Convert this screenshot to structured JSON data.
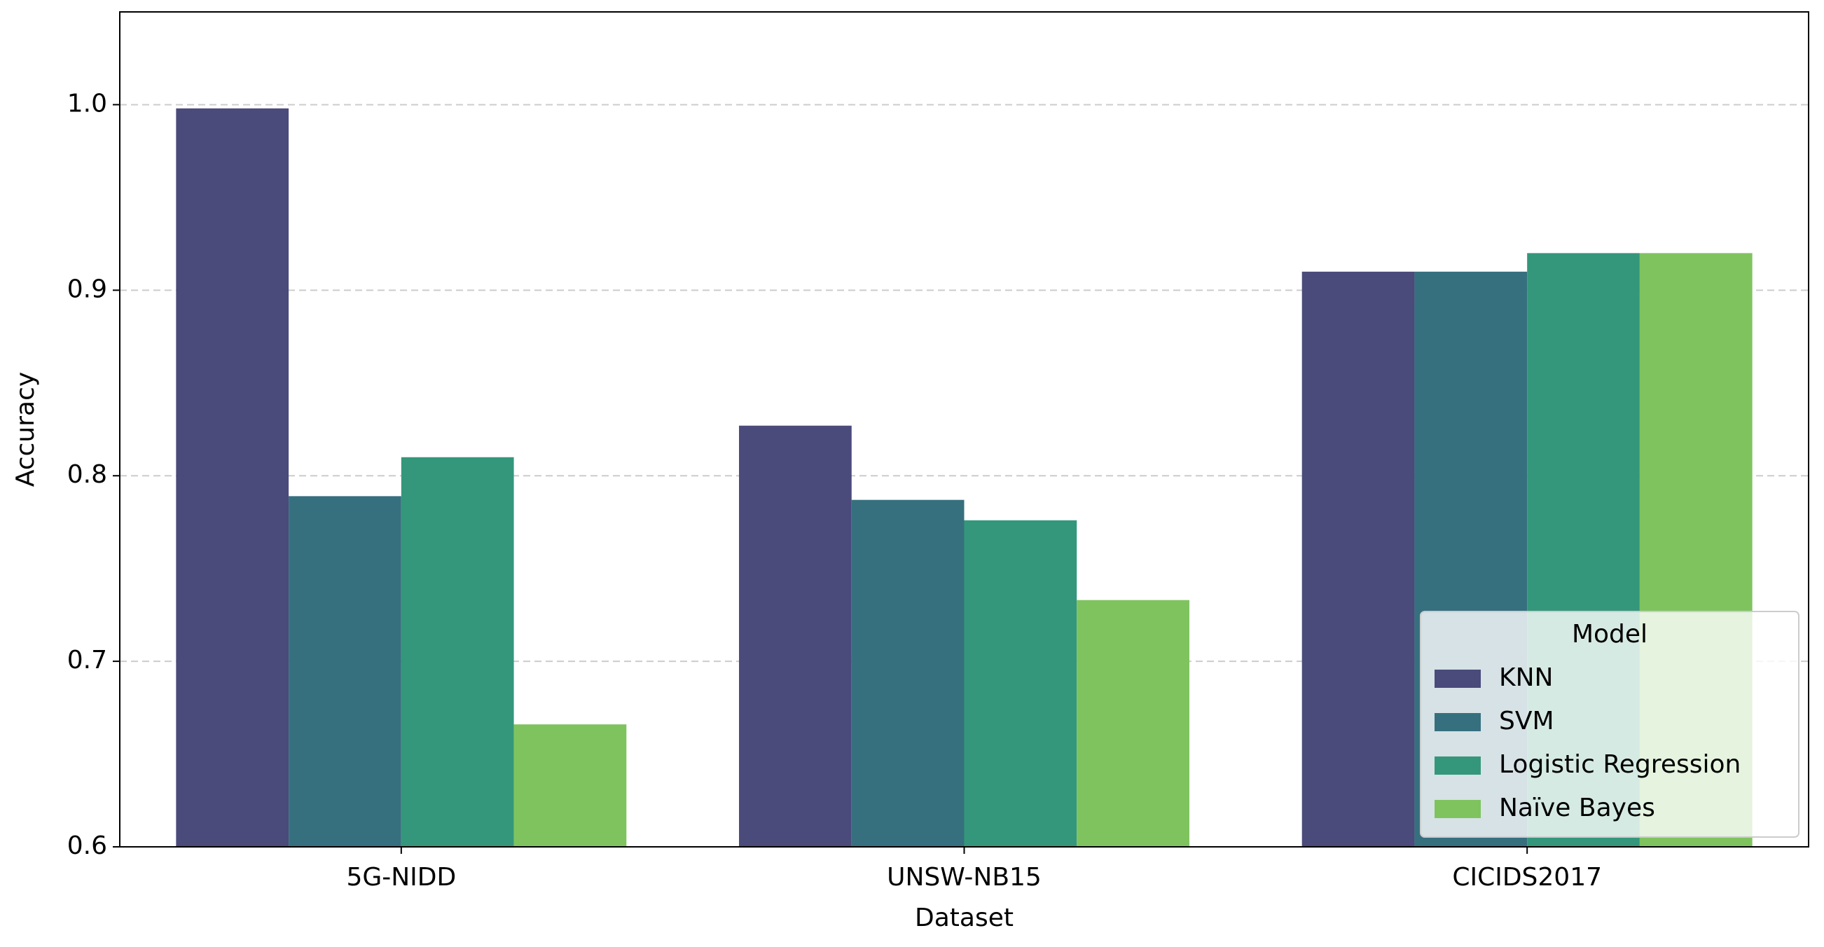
{
  "chart_data": {
    "type": "bar",
    "x_label": "Dataset",
    "y_label": "Accuracy",
    "categories": [
      "5G-NIDD",
      "UNSW-NB15",
      "CICIDS2017"
    ],
    "series": [
      {
        "name": "KNN",
        "color": "#4a4a7b",
        "values": [
          0.998,
          0.827,
          0.91
        ]
      },
      {
        "name": "SVM",
        "color": "#36707f",
        "values": [
          0.789,
          0.787,
          0.91
        ]
      },
      {
        "name": "Logistic Regression",
        "color": "#34977b",
        "values": [
          0.81,
          0.776,
          0.92
        ]
      },
      {
        "name": "Naïve Bayes",
        "color": "#7fc35f",
        "values": [
          0.666,
          0.733,
          0.92
        ]
      }
    ],
    "ylim": [
      0.6,
      1.05
    ],
    "yticks": [
      0.6,
      0.7,
      0.8,
      0.9,
      {
        "value": 1.0,
        "label": "1.0"
      }
    ],
    "grid": true,
    "legend_title": "Model",
    "legend_loc": "lower right"
  }
}
